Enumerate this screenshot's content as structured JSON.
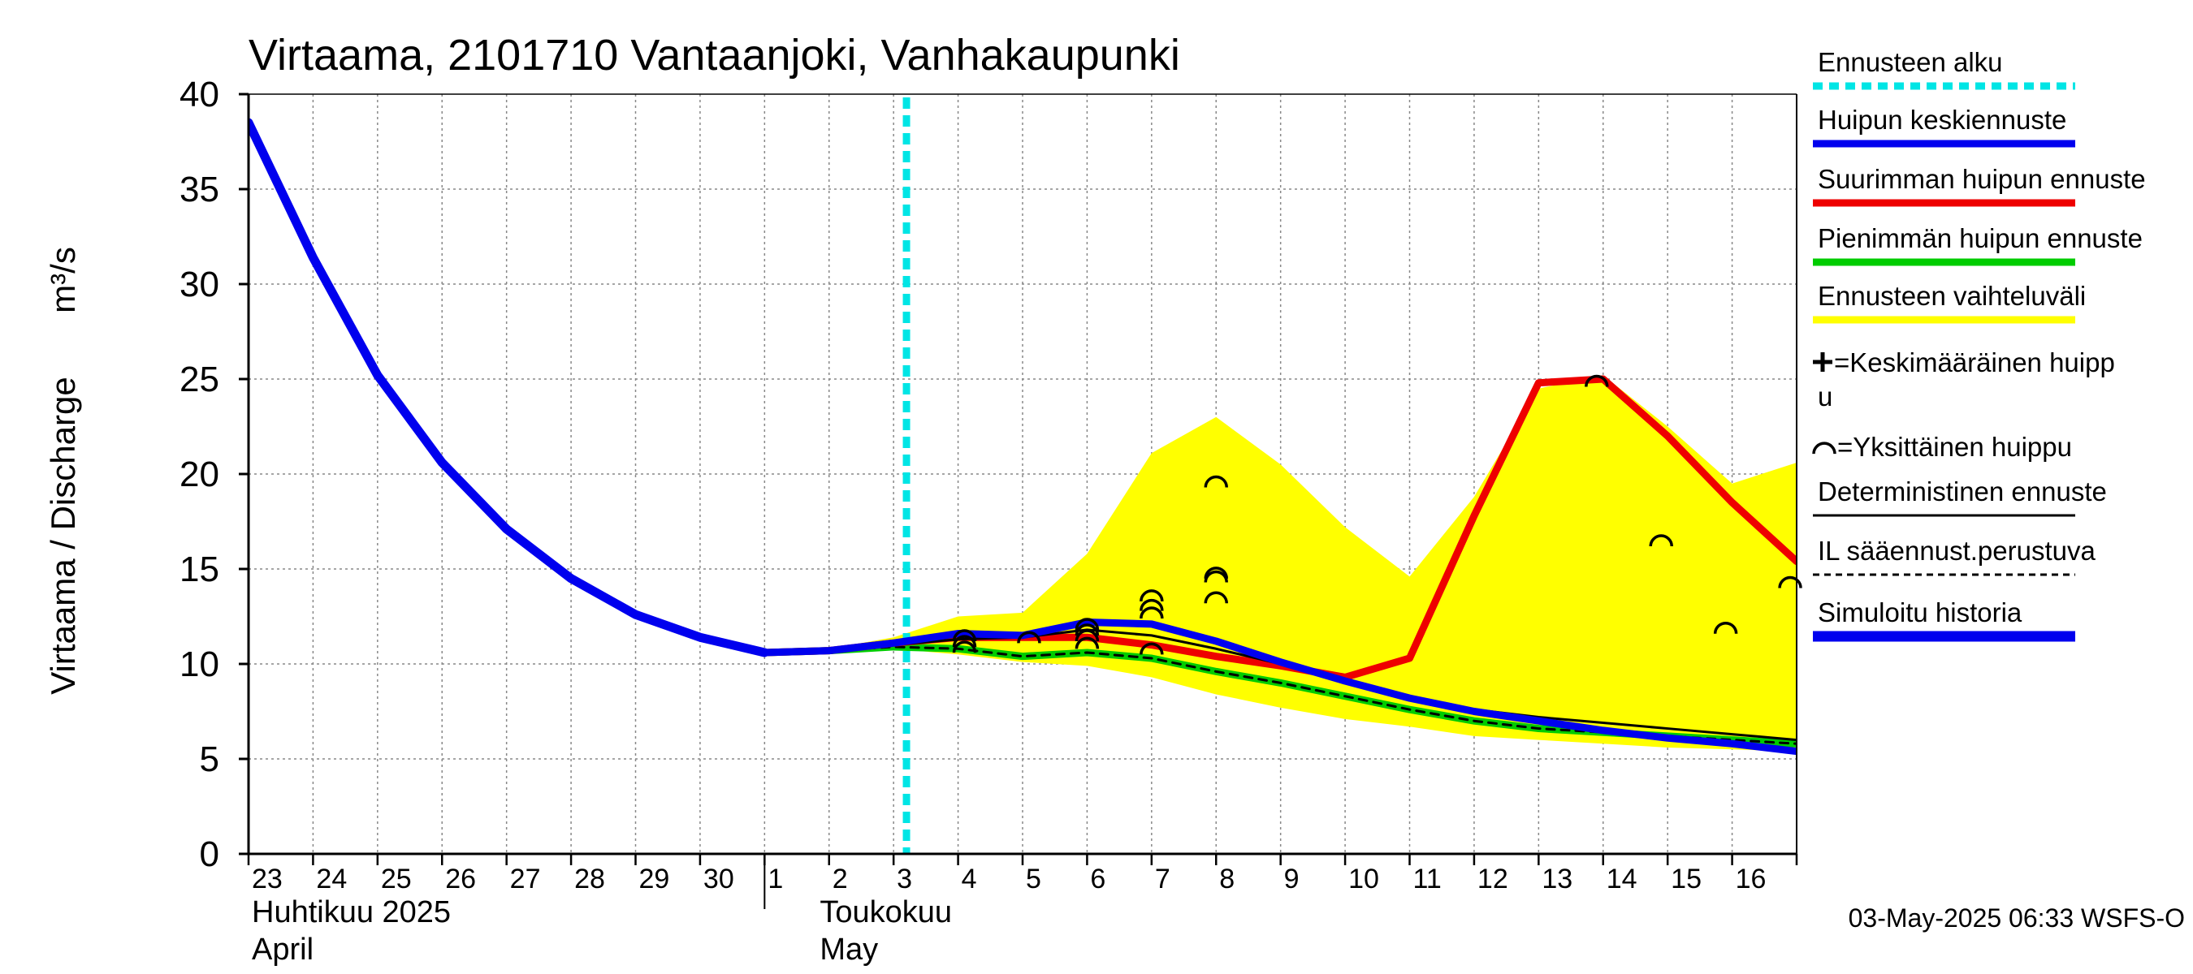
{
  "chart_data": {
    "type": "line",
    "title": "Virtaama, 2101710 Vantaanjoki, Vanhakaupunki",
    "ylabel": "Virtaama / Discharge",
    "yunit": "m³/s",
    "ylim": [
      0,
      40
    ],
    "yticks": [
      0,
      5,
      10,
      15,
      20,
      25,
      30,
      35,
      40
    ],
    "xlim": [
      0,
      24
    ],
    "grid": true,
    "day_labels": [
      "23",
      "24",
      "25",
      "26",
      "27",
      "28",
      "29",
      "30",
      "1",
      "2",
      "3",
      "4",
      "5",
      "6",
      "7",
      "8",
      "9",
      "10",
      "11",
      "12",
      "13",
      "14",
      "15",
      "16"
    ],
    "month_labels": [
      {
        "x": 0,
        "lines": [
          "Huhtikuu  2025",
          "April"
        ]
      },
      {
        "x": 8,
        "lines": [
          "Toukokuu",
          "May"
        ]
      }
    ],
    "month_divider_x": 8,
    "forecast_start_x": 10.2,
    "series": [
      {
        "name": "Ennusteen vaihteluväli",
        "kind": "band",
        "color": "#ffff00",
        "x": [
          8,
          9,
          10,
          11,
          12,
          13,
          14,
          15,
          16,
          17,
          18,
          19,
          20,
          21,
          22,
          23,
          24
        ],
        "upper": [
          10.6,
          10.8,
          11.4,
          12.5,
          12.7,
          15.8,
          21.1,
          23.0,
          20.5,
          17.2,
          14.6,
          18.8,
          24.5,
          25.2,
          22.5,
          19.5,
          20.6
        ],
        "lower": [
          10.6,
          10.7,
          10.8,
          10.5,
          10.1,
          9.9,
          9.3,
          8.4,
          7.7,
          7.1,
          6.7,
          6.2,
          6.0,
          5.8,
          5.6,
          5.5,
          5.4
        ]
      },
      {
        "name": "Pienimmän huipun ennuste",
        "kind": "line",
        "color": "#00cc00",
        "width": 9,
        "x": [
          8,
          9,
          10,
          11,
          12,
          13,
          14,
          15,
          16,
          17,
          18,
          19,
          20,
          21,
          22,
          23,
          24
        ],
        "y": [
          10.6,
          10.7,
          10.9,
          10.8,
          10.4,
          10.6,
          10.3,
          9.6,
          9.0,
          8.3,
          7.6,
          7.0,
          6.6,
          6.4,
          6.2,
          6.0,
          5.8
        ]
      },
      {
        "name": "IL sääennust.perustuva",
        "kind": "line",
        "color": "#000000",
        "width": 3,
        "dash": "10,8",
        "x": [
          8,
          9,
          10,
          11,
          12,
          13,
          14,
          15,
          16,
          17,
          18,
          19,
          20,
          21,
          22,
          23,
          24
        ],
        "y": [
          10.6,
          10.7,
          10.9,
          10.8,
          10.4,
          10.6,
          10.3,
          9.6,
          9.0,
          8.3,
          7.6,
          7.0,
          6.6,
          6.4,
          6.2,
          6.0,
          5.8
        ]
      },
      {
        "name": "Suurimman huipun ennuste",
        "kind": "line",
        "color": "#ee0000",
        "width": 9,
        "x": [
          8,
          9,
          10,
          11,
          12,
          13,
          14,
          15,
          16,
          17,
          18,
          19,
          20,
          21,
          22,
          23,
          24
        ],
        "y": [
          10.6,
          10.7,
          11.1,
          11.4,
          11.4,
          11.4,
          11.0,
          10.4,
          9.9,
          9.3,
          10.3,
          17.8,
          24.8,
          25.0,
          22.0,
          18.5,
          15.4
        ]
      },
      {
        "name": "Deterministinen ennuste",
        "kind": "line",
        "color": "#000000",
        "width": 3,
        "x": [
          8,
          9,
          10,
          11,
          12,
          13,
          14,
          15,
          16,
          17,
          18,
          19,
          20,
          21,
          22,
          23,
          24
        ],
        "y": [
          10.6,
          10.7,
          11.0,
          11.3,
          11.4,
          11.8,
          11.5,
          10.8,
          10.0,
          9.1,
          8.3,
          7.6,
          7.2,
          6.9,
          6.6,
          6.3,
          6.0
        ]
      },
      {
        "name": "Huipun keskiennuste",
        "kind": "line",
        "color": "#0000ee",
        "width": 9,
        "x": [
          8,
          9,
          10,
          11,
          12,
          13,
          14,
          15,
          16,
          17,
          18,
          19,
          20,
          21,
          22,
          23,
          24
        ],
        "y": [
          10.6,
          10.7,
          11.1,
          11.6,
          11.5,
          12.2,
          12.1,
          11.2,
          10.1,
          9.1,
          8.2,
          7.5,
          7.0,
          6.5,
          6.1,
          5.8,
          5.4
        ]
      },
      {
        "name": "Simuloitu historia",
        "kind": "line",
        "color": "#0000ee",
        "width": 11,
        "x": [
          0,
          1,
          2,
          3,
          4,
          5,
          6,
          7,
          8
        ],
        "y": [
          38.5,
          31.4,
          25.2,
          20.6,
          17.1,
          14.5,
          12.6,
          11.4,
          10.6
        ]
      }
    ],
    "individual_peaks": [
      {
        "x": 11.1,
        "y": 11.5
      },
      {
        "x": 11.1,
        "y": 11.2
      },
      {
        "x": 11.1,
        "y": 10.9
      },
      {
        "x": 12.1,
        "y": 11.4
      },
      {
        "x": 13.0,
        "y": 12.1
      },
      {
        "x": 13.0,
        "y": 11.8
      },
      {
        "x": 13.0,
        "y": 11.5
      },
      {
        "x": 13.0,
        "y": 11.1
      },
      {
        "x": 14.0,
        "y": 13.6
      },
      {
        "x": 14.0,
        "y": 13.1
      },
      {
        "x": 14.0,
        "y": 12.7
      },
      {
        "x": 14.0,
        "y": 10.8
      },
      {
        "x": 15.0,
        "y": 19.6
      },
      {
        "x": 15.0,
        "y": 14.8
      },
      {
        "x": 15.0,
        "y": 14.6
      },
      {
        "x": 15.0,
        "y": 13.5
      },
      {
        "x": 20.9,
        "y": 24.9
      },
      {
        "x": 21.9,
        "y": 16.5
      },
      {
        "x": 22.9,
        "y": 11.9
      },
      {
        "x": 23.9,
        "y": 14.3
      }
    ],
    "legend": [
      {
        "label": "Ennusteen alku",
        "style": "dash-cyan"
      },
      {
        "label": "Huipun keskiennuste",
        "style": "line-blue"
      },
      {
        "label": "Suurimman huipun ennuste",
        "style": "line-red"
      },
      {
        "label": "Pienimmän huipun ennuste",
        "style": "line-green"
      },
      {
        "label": "Ennusteen vaihteluväli",
        "style": "line-yellow"
      },
      {
        "label": "=Keskimääräinen huipp",
        "label2": "u",
        "style": "plus"
      },
      {
        "label": "=Yksittäinen huippu",
        "style": "arc"
      },
      {
        "label": "Deterministinen ennuste",
        "style": "line-black"
      },
      {
        "label": "IL sääennust.perustuva",
        "style": "dash-black"
      },
      {
        "label": "Simuloitu historia",
        "style": "line-blue-thick"
      }
    ],
    "footer": "03-May-2025 06:33 WSFS-O"
  },
  "colors": {
    "forecast_start": "#00e5e5",
    "grid": "#888888",
    "band": "#ffff00"
  }
}
